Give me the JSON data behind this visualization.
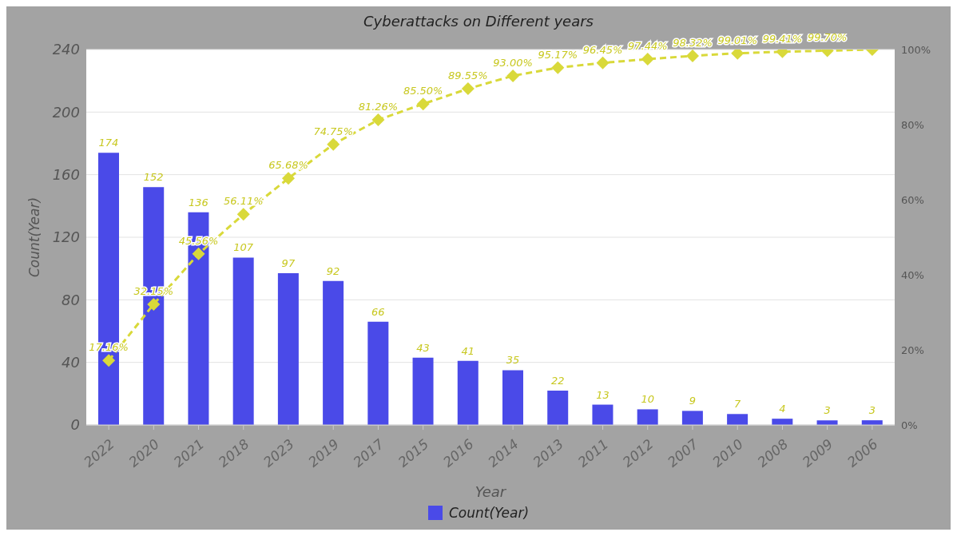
{
  "chart_data": {
    "type": "bar",
    "title": "Cyberattacks on Different years",
    "xlabel": "Year",
    "ylabel": "Count(Year)",
    "categories": [
      "2022",
      "2020",
      "2021",
      "2018",
      "2023",
      "2019",
      "2017",
      "2015",
      "2016",
      "2014",
      "2013",
      "2011",
      "2012",
      "2007",
      "2010",
      "2008",
      "2009",
      "2006"
    ],
    "series": [
      {
        "name": "Count(Year)",
        "color": "#4a4ae8",
        "values": [
          174,
          152,
          136,
          107,
          97,
          92,
          66,
          43,
          41,
          35,
          22,
          13,
          10,
          9,
          7,
          4,
          3,
          3
        ],
        "value_labels": [
          "174",
          "152",
          "136",
          "107",
          "97",
          "92",
          "66",
          "43",
          "41",
          "35",
          "22",
          "13",
          "10",
          "9",
          "7",
          "4",
          "3",
          "3"
        ]
      },
      {
        "type": "line",
        "axis": "y2",
        "color": "#d9d93a",
        "marker": "diamond",
        "line_style": "dashed",
        "values": [
          17.16,
          32.15,
          45.56,
          56.11,
          65.68,
          74.75,
          81.26,
          85.5,
          89.55,
          93.0,
          95.17,
          96.45,
          97.44,
          98.32,
          99.01,
          99.41,
          99.7,
          100
        ],
        "value_labels": [
          "17.16%",
          "32.15%",
          "45.56%",
          "56.11%",
          "65.68%",
          "74.75%",
          "81.26%",
          "85.50%",
          "89.55%",
          "93.00%",
          "95.17%",
          "96.45%",
          "97.44%",
          "98.32%",
          "99.01%",
          "99.41%",
          "99.70%",
          null
        ]
      }
    ],
    "ylim": [
      0,
      240
    ],
    "yticks": [
      0,
      40,
      80,
      120,
      160,
      200,
      240
    ],
    "y2lim": [
      0,
      100
    ],
    "y2ticks": [
      {
        "value": 0,
        "label": "0%"
      },
      {
        "value": 20,
        "label": "20%"
      },
      {
        "value": 40,
        "label": "40%"
      },
      {
        "value": 60,
        "label": "60%"
      },
      {
        "value": 80,
        "label": "80%"
      },
      {
        "value": 100,
        "label": "100%"
      }
    ],
    "grid": "y",
    "legend": "bottom"
  }
}
